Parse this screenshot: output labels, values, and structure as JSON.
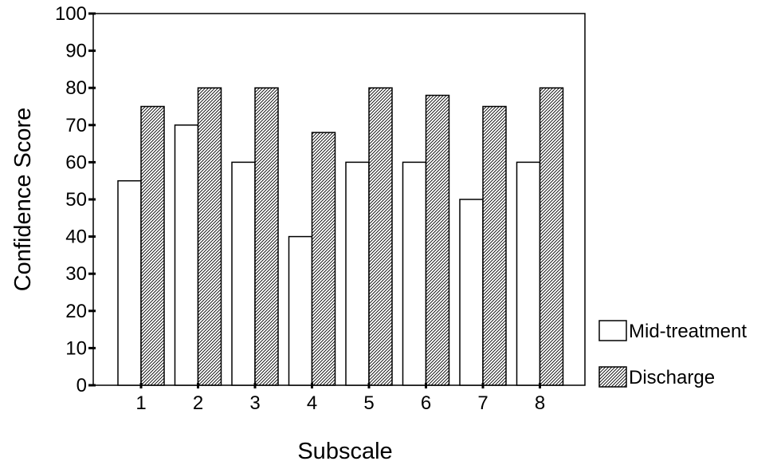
{
  "chart_data": {
    "type": "bar",
    "title": "",
    "xlabel": "Subscale",
    "ylabel": "Confidence Score",
    "categories": [
      "1",
      "2",
      "3",
      "4",
      "5",
      "6",
      "7",
      "8"
    ],
    "series": [
      {
        "name": "Mid-treatment",
        "values": [
          55,
          70,
          60,
          40,
          60,
          60,
          50,
          60
        ],
        "fill": "#ffffff",
        "pattern": "none"
      },
      {
        "name": "Discharge",
        "values": [
          75,
          80,
          80,
          68,
          80,
          78,
          75,
          80
        ],
        "fill": "#ffffff",
        "pattern": "diagonal-hatch"
      }
    ],
    "ylim": [
      0,
      100
    ],
    "yticks": [
      "0",
      "10",
      "20",
      "30",
      "40",
      "50",
      "60",
      "70",
      "80",
      "90",
      "100"
    ],
    "grid": false,
    "legend_position": "bottom-right, outside plot"
  }
}
